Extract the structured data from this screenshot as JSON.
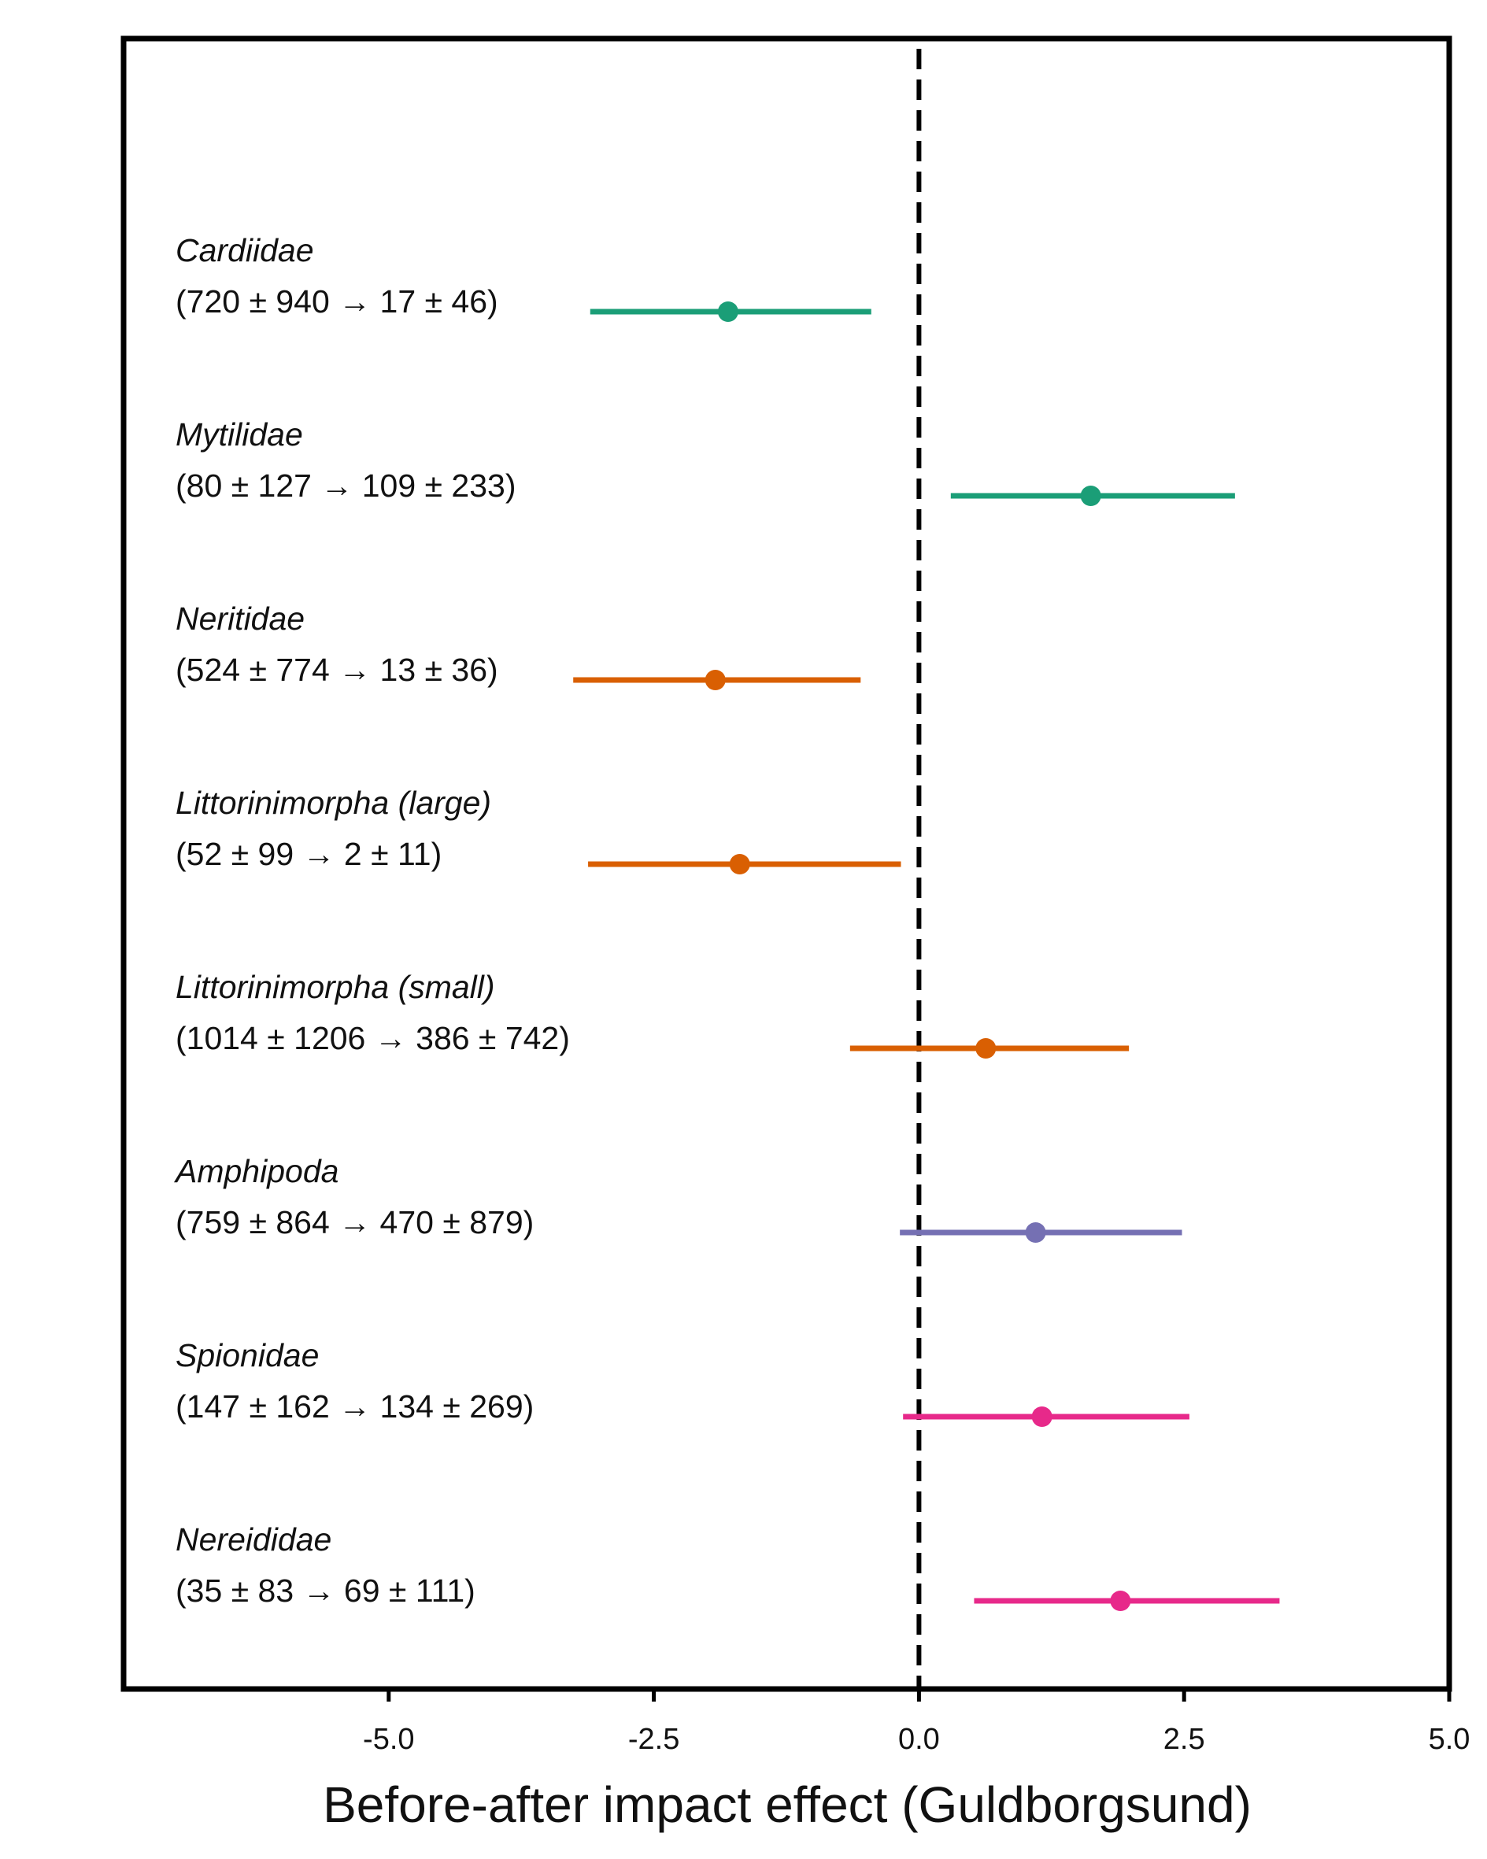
{
  "chart_data": {
    "type": "forest",
    "xlabel": "Before-after impact effect (Guldborgsund)",
    "xlim": [
      -7.5,
      5.0
    ],
    "xticks": [
      -5.0,
      -2.5,
      0.0,
      2.5,
      5.0
    ],
    "xtick_labels": [
      "-5.0",
      "-2.5",
      "0.0",
      "2.5",
      "5.0"
    ],
    "reference_line": 0.0,
    "grid": false,
    "series": [
      {
        "name": "Cardiidae",
        "counts": "(720 ± 940 → 17 ± 46)",
        "estimate": -1.8,
        "lower": -3.1,
        "upper": -0.45,
        "color": "#1b9e77"
      },
      {
        "name": "Mytilidae",
        "counts": "(80 ± 127 → 109 ± 233)",
        "estimate": 1.62,
        "lower": 0.3,
        "upper": 2.98,
        "color": "#1b9e77"
      },
      {
        "name": "Neritidae",
        "counts": "(524 ± 774 → 13 ± 36)",
        "estimate": -1.92,
        "lower": -3.26,
        "upper": -0.55,
        "color": "#d95f02"
      },
      {
        "name": "Littorinimorpha (large)",
        "counts": "(52 ± 99 → 2 ± 11)",
        "estimate": -1.69,
        "lower": -3.12,
        "upper": -0.17,
        "color": "#d95f02"
      },
      {
        "name": "Littorinimorpha (small)",
        "counts": "(1014 ± 1206 → 386 ± 742)",
        "estimate": 0.63,
        "lower": -0.65,
        "upper": 1.98,
        "color": "#d95f02"
      },
      {
        "name": "Amphipoda",
        "counts": "(759 ± 864 → 470 ± 879)",
        "estimate": 1.1,
        "lower": -0.18,
        "upper": 2.48,
        "color": "#7570b3"
      },
      {
        "name": "Spionidae",
        "counts": "(147 ± 162 → 134 ± 269)",
        "estimate": 1.16,
        "lower": -0.15,
        "upper": 2.55,
        "color": "#e7298a"
      },
      {
        "name": "Nereididae",
        "counts": "(35 ± 83 → 69 ± 111)",
        "estimate": 1.9,
        "lower": 0.52,
        "upper": 3.4,
        "color": "#e7298a"
      }
    ]
  }
}
